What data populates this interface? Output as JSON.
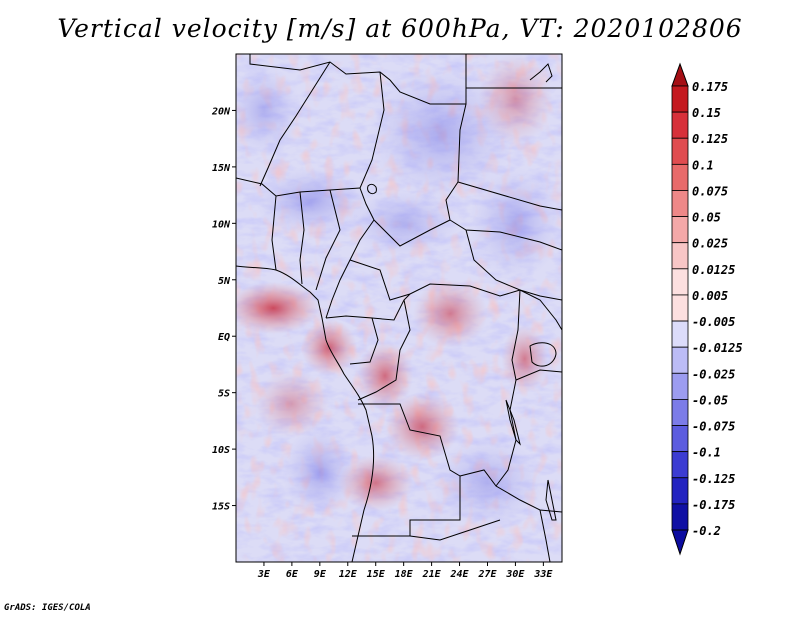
{
  "title": "Vertical velocity [m/s] at 600hPa, VT: 2020102806",
  "credit": "GrADS: IGES/COLA",
  "map": {
    "region": "Central Africa",
    "lon_range": [
      0,
      35
    ],
    "lat_range": [
      -20,
      25
    ],
    "lat_ticks": [
      {
        "label": "20N",
        "value": 20
      },
      {
        "label": "15N",
        "value": 15
      },
      {
        "label": "10N",
        "value": 10
      },
      {
        "label": "5N",
        "value": 5
      },
      {
        "label": "EQ",
        "value": 0
      },
      {
        "label": "5S",
        "value": -5
      },
      {
        "label": "10S",
        "value": -10
      },
      {
        "label": "15S",
        "value": -15
      }
    ],
    "lon_ticks": [
      {
        "label": "3E",
        "value": 3
      },
      {
        "label": "6E",
        "value": 6
      },
      {
        "label": "9E",
        "value": 9
      },
      {
        "label": "12E",
        "value": 12
      },
      {
        "label": "15E",
        "value": 15
      },
      {
        "label": "18E",
        "value": 18
      },
      {
        "label": "21E",
        "value": 21
      },
      {
        "label": "24E",
        "value": 24
      },
      {
        "label": "27E",
        "value": 27
      },
      {
        "label": "30E",
        "value": 30
      },
      {
        "label": "33E",
        "value": 33
      }
    ]
  },
  "colorbar": {
    "levels": [
      {
        "label": "0.175",
        "color": "#a50f15"
      },
      {
        "label": "0.15",
        "color": "#c4191f"
      },
      {
        "label": "0.125",
        "color": "#d7303a"
      },
      {
        "label": "0.1",
        "color": "#e04c50"
      },
      {
        "label": "0.075",
        "color": "#e86a6a"
      },
      {
        "label": "0.05",
        "color": "#ee8888"
      },
      {
        "label": "0.025",
        "color": "#f4a8a8"
      },
      {
        "label": "0.0125",
        "color": "#f8c6c6"
      },
      {
        "label": "0.005",
        "color": "#fde0e0"
      },
      {
        "label": "-0.005",
        "color": "#ffffff"
      },
      {
        "label": "-0.0125",
        "color": "#dcdcfa"
      },
      {
        "label": "-0.025",
        "color": "#bcbcf6"
      },
      {
        "label": "-0.05",
        "color": "#9c9cf0"
      },
      {
        "label": "-0.075",
        "color": "#7c7ce8"
      },
      {
        "label": "-0.1",
        "color": "#5c5cdf"
      },
      {
        "label": "-0.125",
        "color": "#3c3cd2"
      },
      {
        "label": "-0.175",
        "color": "#2323c0"
      },
      {
        "label": "-0.2",
        "color": "#1010a4"
      }
    ],
    "top_color": "#a50f15",
    "bottom_color": "#0c0ca0"
  },
  "features": {
    "red_bands": [
      {
        "lon": 4,
        "lat": 2.5,
        "rx": 5,
        "ry": 2.3,
        "level": 0.9
      },
      {
        "lon": 10,
        "lat": -1,
        "rx": 3,
        "ry": 2.5,
        "level": 0.75
      },
      {
        "lon": 16,
        "lat": -3.5,
        "rx": 3,
        "ry": 3,
        "level": 0.7
      },
      {
        "lon": 23,
        "lat": 2,
        "rx": 4,
        "ry": 3,
        "level": 0.6
      },
      {
        "lon": 20,
        "lat": -8,
        "rx": 4,
        "ry": 3,
        "level": 0.7
      },
      {
        "lon": 15,
        "lat": -13,
        "rx": 4,
        "ry": 2.5,
        "level": 0.65
      },
      {
        "lon": 31,
        "lat": -2,
        "rx": 2.5,
        "ry": 3,
        "level": 0.6
      },
      {
        "lon": 30,
        "lat": 21,
        "rx": 4,
        "ry": 4,
        "level": 0.45
      },
      {
        "lon": 6,
        "lat": -6,
        "rx": 4,
        "ry": 3,
        "level": 0.4
      }
    ],
    "blue_bands": [
      {
        "lon": 22,
        "lat": 18,
        "rx": 8,
        "ry": 6,
        "level": 0.5
      },
      {
        "lon": 8,
        "lat": 12,
        "rx": 6,
        "ry": 3,
        "level": 0.55
      },
      {
        "lon": 18,
        "lat": 10,
        "rx": 6,
        "ry": 3,
        "level": 0.45
      },
      {
        "lon": 30,
        "lat": 10,
        "rx": 5,
        "ry": 5,
        "level": 0.5
      },
      {
        "lon": 9,
        "lat": -12,
        "rx": 4,
        "ry": 4,
        "level": 0.55
      },
      {
        "lon": 27,
        "lat": -13,
        "rx": 6,
        "ry": 4,
        "level": 0.45
      },
      {
        "lon": 3,
        "lat": 20,
        "rx": 4,
        "ry": 4,
        "level": 0.45
      }
    ]
  }
}
